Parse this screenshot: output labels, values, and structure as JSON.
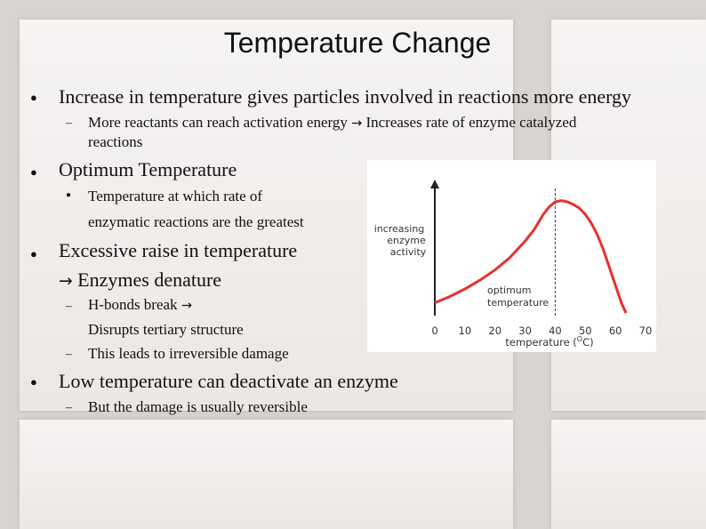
{
  "slide": {
    "title": "Temperature Change",
    "bullets": [
      {
        "text": "Increase in temperature gives particles involved in reactions more energy",
        "subs": [
          {
            "line1": "More reactants can reach activation energy",
            "arrow": "→",
            "line1b": "Increases rate of enzyme catalyzed",
            "line2": "reactions"
          }
        ]
      },
      {
        "text": "Optimum Temperature",
        "subs": [
          {
            "line1": "Temperature at which rate of",
            "line2": "enzymatic reactions are the greatest"
          }
        ]
      },
      {
        "line1": "Excessive raise in temperature",
        "arrow": "→",
        "line2": "Enzymes denature",
        "subs": [
          {
            "line1": "H-bonds break",
            "arrow": "→",
            "line2": "Disrupts tertiary structure"
          },
          {
            "line1": "This leads to irreversible damage"
          }
        ]
      },
      {
        "text": "Low temperature can deactivate an enzyme",
        "subs": [
          {
            "line1": "But the damage is usually reversible"
          }
        ]
      }
    ]
  },
  "colors": {
    "curve": "#e8302e",
    "optimum_line": "#2b3a8c",
    "axis": "#222222"
  },
  "chart_data": {
    "type": "line",
    "title": "",
    "ylabel_lines": [
      "increasing",
      "enzyme",
      "activity"
    ],
    "xlabel_text": "temperature (",
    "xlabel_sup": "O",
    "xlabel_unit": "C)",
    "x_ticks": [
      "0",
      "10",
      "20",
      "30",
      "40",
      "50",
      "60",
      "70"
    ],
    "xlim": [
      0,
      70
    ],
    "ylim": [
      0,
      1
    ],
    "annotation_lines": [
      "optimum",
      "temperature"
    ],
    "optimum_x": 40,
    "series": [
      {
        "x": [
          0,
          5,
          10,
          15,
          20,
          25,
          30,
          33,
          36,
          38,
          40,
          42,
          44,
          46,
          48,
          50,
          52,
          54,
          56,
          58,
          60,
          62,
          63.5
        ],
        "values": [
          0.08,
          0.13,
          0.19,
          0.26,
          0.34,
          0.44,
          0.57,
          0.66,
          0.78,
          0.84,
          0.88,
          0.89,
          0.88,
          0.86,
          0.83,
          0.78,
          0.71,
          0.62,
          0.5,
          0.36,
          0.22,
          0.08,
          0.0
        ]
      }
    ]
  }
}
